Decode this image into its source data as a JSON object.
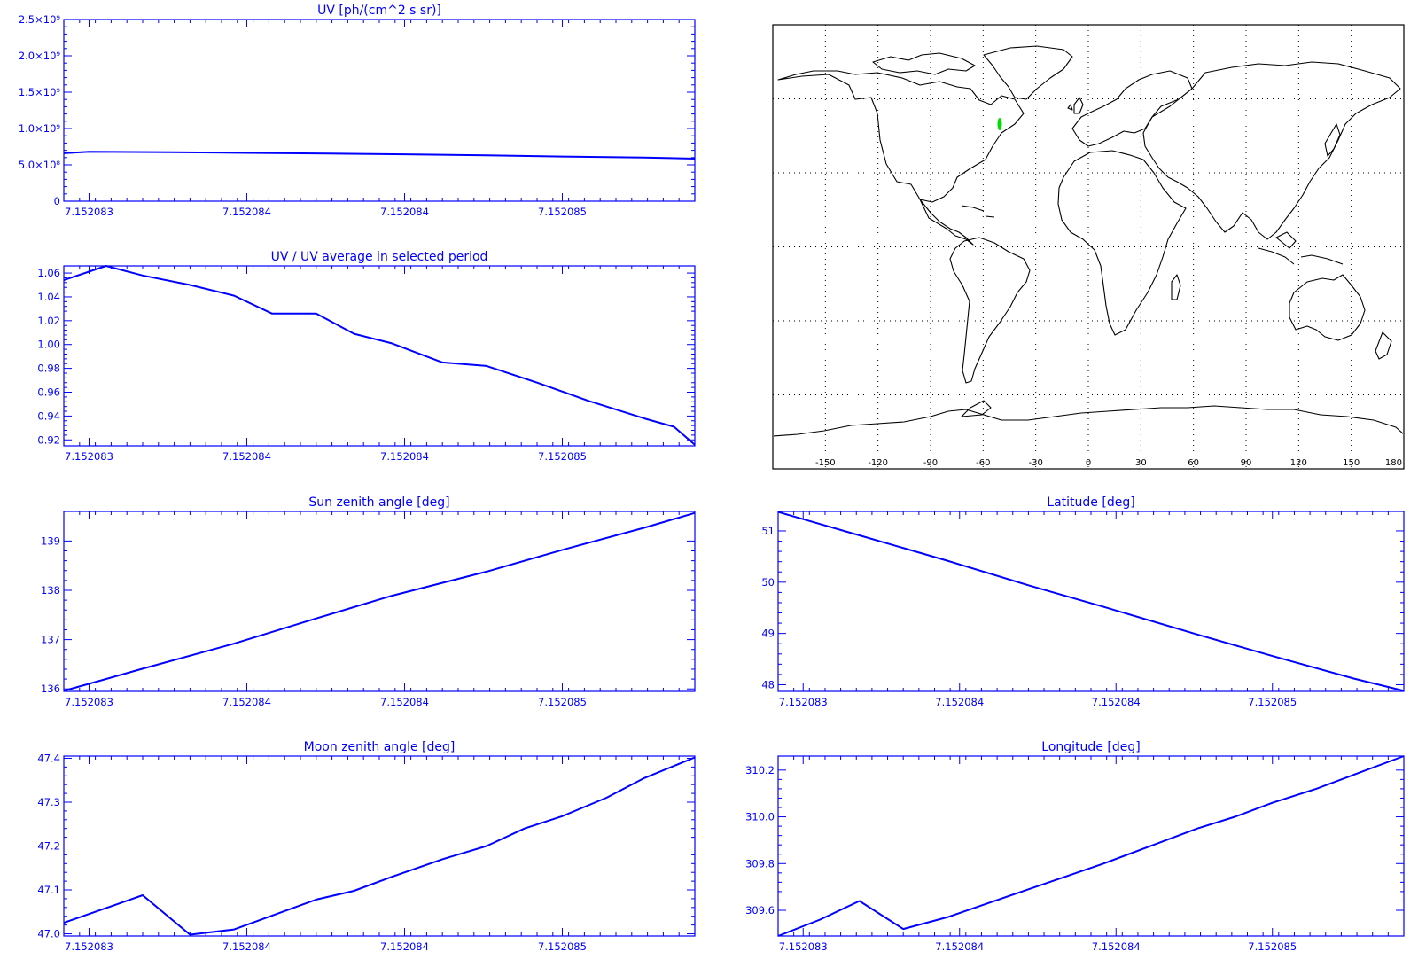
{
  "chart_data": [
    {
      "id": "uv",
      "type": "line",
      "title": "UV [ph/(cm^2 s sr)]",
      "xlim": [
        0,
        1
      ],
      "ylim": [
        0,
        2500000000
      ],
      "yticks": [
        {
          "v": 0,
          "label": "0"
        },
        {
          "v": 500000000,
          "label": "5.0×10⁸"
        },
        {
          "v": 1000000000,
          "label": "1.0×10⁹"
        },
        {
          "v": 1500000000,
          "label": "1.5×10⁹"
        },
        {
          "v": 2000000000,
          "label": "2.0×10⁹"
        },
        {
          "v": 2500000000,
          "label": "2.5×10⁹"
        }
      ],
      "xticks": [
        {
          "v": 0.04,
          "label": "7.152083"
        },
        {
          "v": 0.29,
          "label": "7.152084"
        },
        {
          "v": 0.54,
          "label": "7.152084"
        },
        {
          "v": 0.79,
          "label": "7.152085"
        }
      ],
      "series": [
        {
          "x": [
            0,
            0.04,
            0.17,
            0.29,
            0.42,
            0.54,
            0.67,
            0.79,
            0.92,
            1
          ],
          "y": [
            660000000,
            680000000,
            675000000,
            665000000,
            655000000,
            645000000,
            630000000,
            615000000,
            600000000,
            585000000
          ]
        }
      ]
    },
    {
      "id": "ratio",
      "type": "line",
      "title": "UV / UV average in selected period",
      "xlim": [
        0,
        1
      ],
      "ylim": [
        0.915,
        1.066
      ],
      "yticks": [
        {
          "v": 0.92,
          "label": "0.92"
        },
        {
          "v": 0.94,
          "label": "0.94"
        },
        {
          "v": 0.96,
          "label": "0.96"
        },
        {
          "v": 0.98,
          "label": "0.98"
        },
        {
          "v": 1.0,
          "label": "1.00"
        },
        {
          "v": 1.02,
          "label": "1.02"
        },
        {
          "v": 1.04,
          "label": "1.04"
        },
        {
          "v": 1.06,
          "label": "1.06"
        }
      ],
      "xticks": [
        {
          "v": 0.04,
          "label": "7.152083"
        },
        {
          "v": 0.29,
          "label": "7.152084"
        },
        {
          "v": 0.54,
          "label": "7.152084"
        },
        {
          "v": 0.79,
          "label": "7.152085"
        }
      ],
      "series": [
        {
          "x": [
            0,
            0.067,
            0.125,
            0.2,
            0.27,
            0.33,
            0.4,
            0.46,
            0.52,
            0.6,
            0.67,
            0.75,
            0.83,
            0.92,
            0.967,
            1
          ],
          "y": [
            1.054,
            1.066,
            1.058,
            1.05,
            1.041,
            1.026,
            1.026,
            1.009,
            1.001,
            0.985,
            0.982,
            0.968,
            0.953,
            0.938,
            0.931,
            0.916
          ]
        }
      ]
    },
    {
      "id": "sun",
      "type": "line",
      "title": "Sun zenith angle [deg]",
      "xlim": [
        0,
        1
      ],
      "ylim": [
        135.95,
        139.6
      ],
      "yticks": [
        {
          "v": 136,
          "label": "136"
        },
        {
          "v": 137,
          "label": "137"
        },
        {
          "v": 138,
          "label": "138"
        },
        {
          "v": 139,
          "label": "139"
        }
      ],
      "xticks": [
        {
          "v": 0.04,
          "label": "7.152083"
        },
        {
          "v": 0.29,
          "label": "7.152084"
        },
        {
          "v": 0.54,
          "label": "7.152084"
        },
        {
          "v": 0.79,
          "label": "7.152085"
        }
      ],
      "series": [
        {
          "x": [
            0,
            0.125,
            0.27,
            0.4,
            0.52,
            0.67,
            0.79,
            0.92,
            1
          ],
          "y": [
            135.96,
            136.41,
            136.92,
            137.43,
            137.89,
            138.38,
            138.82,
            139.27,
            139.57
          ]
        }
      ]
    },
    {
      "id": "lat",
      "type": "line",
      "title": "Latitude [deg]",
      "xlim": [
        0,
        1
      ],
      "ylim": [
        47.87,
        51.38
      ],
      "yticks": [
        {
          "v": 48,
          "label": "48"
        },
        {
          "v": 49,
          "label": "49"
        },
        {
          "v": 50,
          "label": "50"
        },
        {
          "v": 51,
          "label": "51"
        }
      ],
      "xticks": [
        {
          "v": 0.04,
          "label": "7.152083"
        },
        {
          "v": 0.29,
          "label": "7.152084"
        },
        {
          "v": 0.54,
          "label": "7.152084"
        },
        {
          "v": 0.79,
          "label": "7.152085"
        }
      ],
      "series": [
        {
          "x": [
            0,
            0.125,
            0.27,
            0.4,
            0.52,
            0.67,
            0.79,
            0.92,
            1
          ],
          "y": [
            51.37,
            50.93,
            50.42,
            49.94,
            49.52,
            48.98,
            48.56,
            48.12,
            47.88
          ]
        }
      ]
    },
    {
      "id": "moon",
      "type": "line",
      "title": "Moon zenith angle [deg]",
      "xlim": [
        0,
        1
      ],
      "ylim": [
        46.995,
        47.405
      ],
      "yticks": [
        {
          "v": 47.0,
          "label": "47.0"
        },
        {
          "v": 47.1,
          "label": "47.1"
        },
        {
          "v": 47.2,
          "label": "47.2"
        },
        {
          "v": 47.3,
          "label": "47.3"
        },
        {
          "v": 47.4,
          "label": "47.4"
        }
      ],
      "xticks": [
        {
          "v": 0.04,
          "label": "7.152083"
        },
        {
          "v": 0.29,
          "label": "7.152084"
        },
        {
          "v": 0.54,
          "label": "7.152084"
        },
        {
          "v": 0.79,
          "label": "7.152085"
        }
      ],
      "series": [
        {
          "x": [
            0,
            0.125,
            0.2,
            0.27,
            0.4,
            0.46,
            0.52,
            0.6,
            0.67,
            0.73,
            0.79,
            0.86,
            0.92,
            1
          ],
          "y": [
            47.025,
            47.088,
            46.998,
            47.01,
            47.078,
            47.098,
            47.13,
            47.17,
            47.2,
            47.24,
            47.268,
            47.31,
            47.355,
            47.402
          ]
        }
      ]
    },
    {
      "id": "lon",
      "type": "line",
      "title": "Longitude [deg]",
      "xlim": [
        0,
        1
      ],
      "ylim": [
        309.49,
        310.26
      ],
      "yticks": [
        {
          "v": 309.6,
          "label": "309.6"
        },
        {
          "v": 309.8,
          "label": "309.8"
        },
        {
          "v": 310.0,
          "label": "310.0"
        },
        {
          "v": 310.2,
          "label": "310.2"
        }
      ],
      "xticks": [
        {
          "v": 0.04,
          "label": "7.152083"
        },
        {
          "v": 0.29,
          "label": "7.152084"
        },
        {
          "v": 0.54,
          "label": "7.152084"
        },
        {
          "v": 0.79,
          "label": "7.152085"
        }
      ],
      "series": [
        {
          "x": [
            0,
            0.067,
            0.13,
            0.2,
            0.27,
            0.4,
            0.52,
            0.6,
            0.67,
            0.73,
            0.79,
            0.86,
            0.92,
            1
          ],
          "y": [
            309.49,
            309.56,
            309.64,
            309.52,
            309.57,
            309.69,
            309.8,
            309.88,
            309.95,
            310.0,
            310.06,
            310.12,
            310.18,
            310.26
          ]
        }
      ]
    }
  ],
  "map": {
    "type": "map",
    "projection": "cylindrical",
    "lon_ticks": [
      "-150",
      "-120",
      "-90",
      "-60",
      "-30",
      "0",
      "30",
      "60",
      "90",
      "120",
      "150",
      "180"
    ],
    "track": {
      "lon": [
        309.49,
        310.26
      ],
      "lat": [
        47.88,
        51.37
      ],
      "color": "#00dd00"
    }
  },
  "colors": {
    "axis": "#0000ff",
    "line": "#0000ff",
    "coast": "#000000",
    "track": "#00dd00"
  }
}
